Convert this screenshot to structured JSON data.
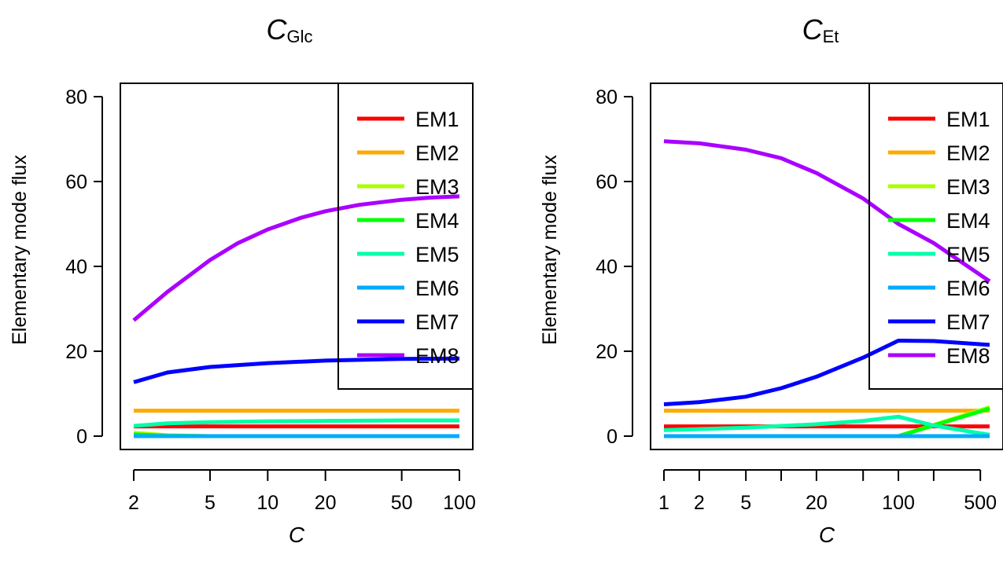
{
  "colors": {
    "EM1": "#FF0000",
    "EM2": "#FFAA00",
    "EM3": "#AAFF00",
    "EM4": "#00FF00",
    "EM5": "#00FFAA",
    "EM6": "#00AAFF",
    "EM7": "#0000FF",
    "EM8": "#AA00FF"
  },
  "chart_data": [
    {
      "type": "line",
      "title_main": "C",
      "title_sub": "Glc",
      "xlabel": "C",
      "ylabel": "Elementary mode flux",
      "xscale": "log",
      "xlim": [
        2,
        100
      ],
      "ylim": [
        0,
        80
      ],
      "xticks": [
        2,
        5,
        10,
        20,
        50,
        100
      ],
      "xtick_labels": [
        "2",
        "5",
        "10",
        "20",
        "50",
        "100"
      ],
      "xticks_minor": [],
      "yticks": [
        0,
        20,
        40,
        60,
        80
      ],
      "ytick_labels": [
        "0",
        "20",
        "40",
        "60",
        "80"
      ],
      "legend": "top-right",
      "legend_entries": [
        "EM1",
        "EM2",
        "EM3",
        "EM4",
        "EM5",
        "EM6",
        "EM7",
        "EM8"
      ],
      "series": [
        {
          "name": "EM1",
          "x": [
            2,
            3,
            5,
            10,
            20,
            50,
            100
          ],
          "y": [
            2.3,
            2.3,
            2.3,
            2.3,
            2.3,
            2.3,
            2.3
          ]
        },
        {
          "name": "EM2",
          "x": [
            2,
            100
          ],
          "y": [
            6,
            6
          ]
        },
        {
          "name": "EM3",
          "x": [
            2,
            3,
            5,
            10,
            20,
            50,
            100
          ],
          "y": [
            0.8,
            0.2,
            0,
            0,
            0,
            0,
            0
          ]
        },
        {
          "name": "EM4",
          "x": [
            2,
            3,
            5,
            10,
            20,
            50,
            100
          ],
          "y": [
            0.4,
            0.1,
            0,
            0,
            0,
            0,
            0
          ]
        },
        {
          "name": "EM5",
          "x": [
            2,
            3,
            5,
            10,
            20,
            50,
            100
          ],
          "y": [
            2.4,
            3,
            3.3,
            3.5,
            3.6,
            3.7,
            3.7
          ]
        },
        {
          "name": "EM6",
          "x": [
            2,
            100
          ],
          "y": [
            0,
            0
          ]
        },
        {
          "name": "EM7",
          "x": [
            2,
            3,
            5,
            10,
            20,
            50,
            100
          ],
          "y": [
            12.7,
            15,
            16.3,
            17.2,
            17.8,
            18.2,
            18.3
          ]
        },
        {
          "name": "EM8",
          "x": [
            2,
            3,
            5,
            7,
            10,
            15,
            20,
            30,
            50,
            70,
            100
          ],
          "y": [
            27.3,
            34,
            41.5,
            45.5,
            48.7,
            51.5,
            53,
            54.5,
            55.7,
            56.2,
            56.5
          ]
        }
      ]
    },
    {
      "type": "line",
      "title_main": "C",
      "title_sub": "Et",
      "xlabel": "C",
      "ylabel": "Elementary mode flux",
      "xscale": "log",
      "xlim": [
        1,
        600
      ],
      "ylim": [
        0,
        80
      ],
      "xticks": [
        1,
        2,
        5,
        20,
        100,
        500
      ],
      "xtick_labels": [
        "1",
        "2",
        "5",
        "20",
        "100",
        "500"
      ],
      "xticks_minor": [
        10,
        50,
        200
      ],
      "yticks": [
        0,
        20,
        40,
        60,
        80
      ],
      "ytick_labels": [
        "0",
        "20",
        "40",
        "60",
        "80"
      ],
      "legend": "top-right",
      "legend_entries": [
        "EM1",
        "EM2",
        "EM3",
        "EM4",
        "EM5",
        "EM6",
        "EM7",
        "EM8"
      ],
      "series": [
        {
          "name": "EM1",
          "x": [
            1,
            600
          ],
          "y": [
            2.3,
            2.3
          ]
        },
        {
          "name": "EM2",
          "x": [
            1,
            600
          ],
          "y": [
            6,
            6
          ]
        },
        {
          "name": "EM3",
          "x": [
            1,
            100,
            600
          ],
          "y": [
            0,
            0,
            6.8
          ]
        },
        {
          "name": "EM4",
          "x": [
            1,
            100,
            600
          ],
          "y": [
            0,
            0,
            6.5
          ]
        },
        {
          "name": "EM5",
          "x": [
            1,
            5,
            20,
            50,
            100,
            200,
            600
          ],
          "y": [
            1.4,
            2,
            2.8,
            3.6,
            4.6,
            2.5,
            0.3
          ]
        },
        {
          "name": "EM6",
          "x": [
            1,
            600
          ],
          "y": [
            0,
            0
          ]
        },
        {
          "name": "EM7",
          "x": [
            1,
            2,
            5,
            10,
            20,
            50,
            100,
            200,
            600
          ],
          "y": [
            7.5,
            8,
            9.3,
            11.3,
            14,
            18.5,
            22.5,
            22.4,
            21.5
          ]
        },
        {
          "name": "EM8",
          "x": [
            1,
            2,
            5,
            10,
            20,
            50,
            100,
            200,
            600
          ],
          "y": [
            69.5,
            69,
            67.5,
            65.5,
            62,
            56,
            50,
            45.5,
            36.5
          ]
        }
      ]
    }
  ]
}
